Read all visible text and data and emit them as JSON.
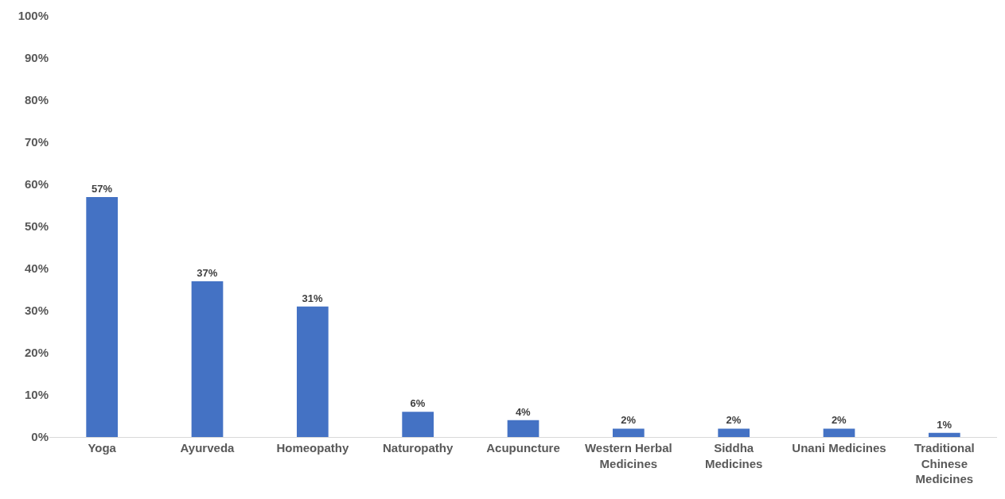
{
  "chart_data": {
    "type": "bar",
    "categories": [
      "Yoga",
      "Ayurveda",
      "Homeopathy",
      "Naturopathy",
      "Acupuncture",
      "Western Herbal Medicines",
      "Siddha Medicines",
      "Unani Medicines",
      "Traditional Chinese Medicines"
    ],
    "values": [
      57,
      37,
      31,
      6,
      4,
      2,
      2,
      2,
      1
    ],
    "value_labels": [
      "57%",
      "37%",
      "31%",
      "6%",
      "4%",
      "2%",
      "2%",
      "2%",
      "1%"
    ],
    "color": "#4472c4",
    "ylim": [
      0,
      100
    ],
    "yticks": [
      {
        "value": 0,
        "label": "0%"
      },
      {
        "value": 10,
        "label": "10%"
      },
      {
        "value": 20,
        "label": "20%"
      },
      {
        "value": 30,
        "label": "30%"
      },
      {
        "value": 40,
        "label": "40%"
      },
      {
        "value": 50,
        "label": "50%"
      },
      {
        "value": 60,
        "label": "60%"
      },
      {
        "value": 70,
        "label": "70%"
      },
      {
        "value": 80,
        "label": "80%"
      },
      {
        "value": 90,
        "label": "90%"
      },
      {
        "value": 100,
        "label": "100%"
      }
    ],
    "grid": false,
    "legend": false
  }
}
